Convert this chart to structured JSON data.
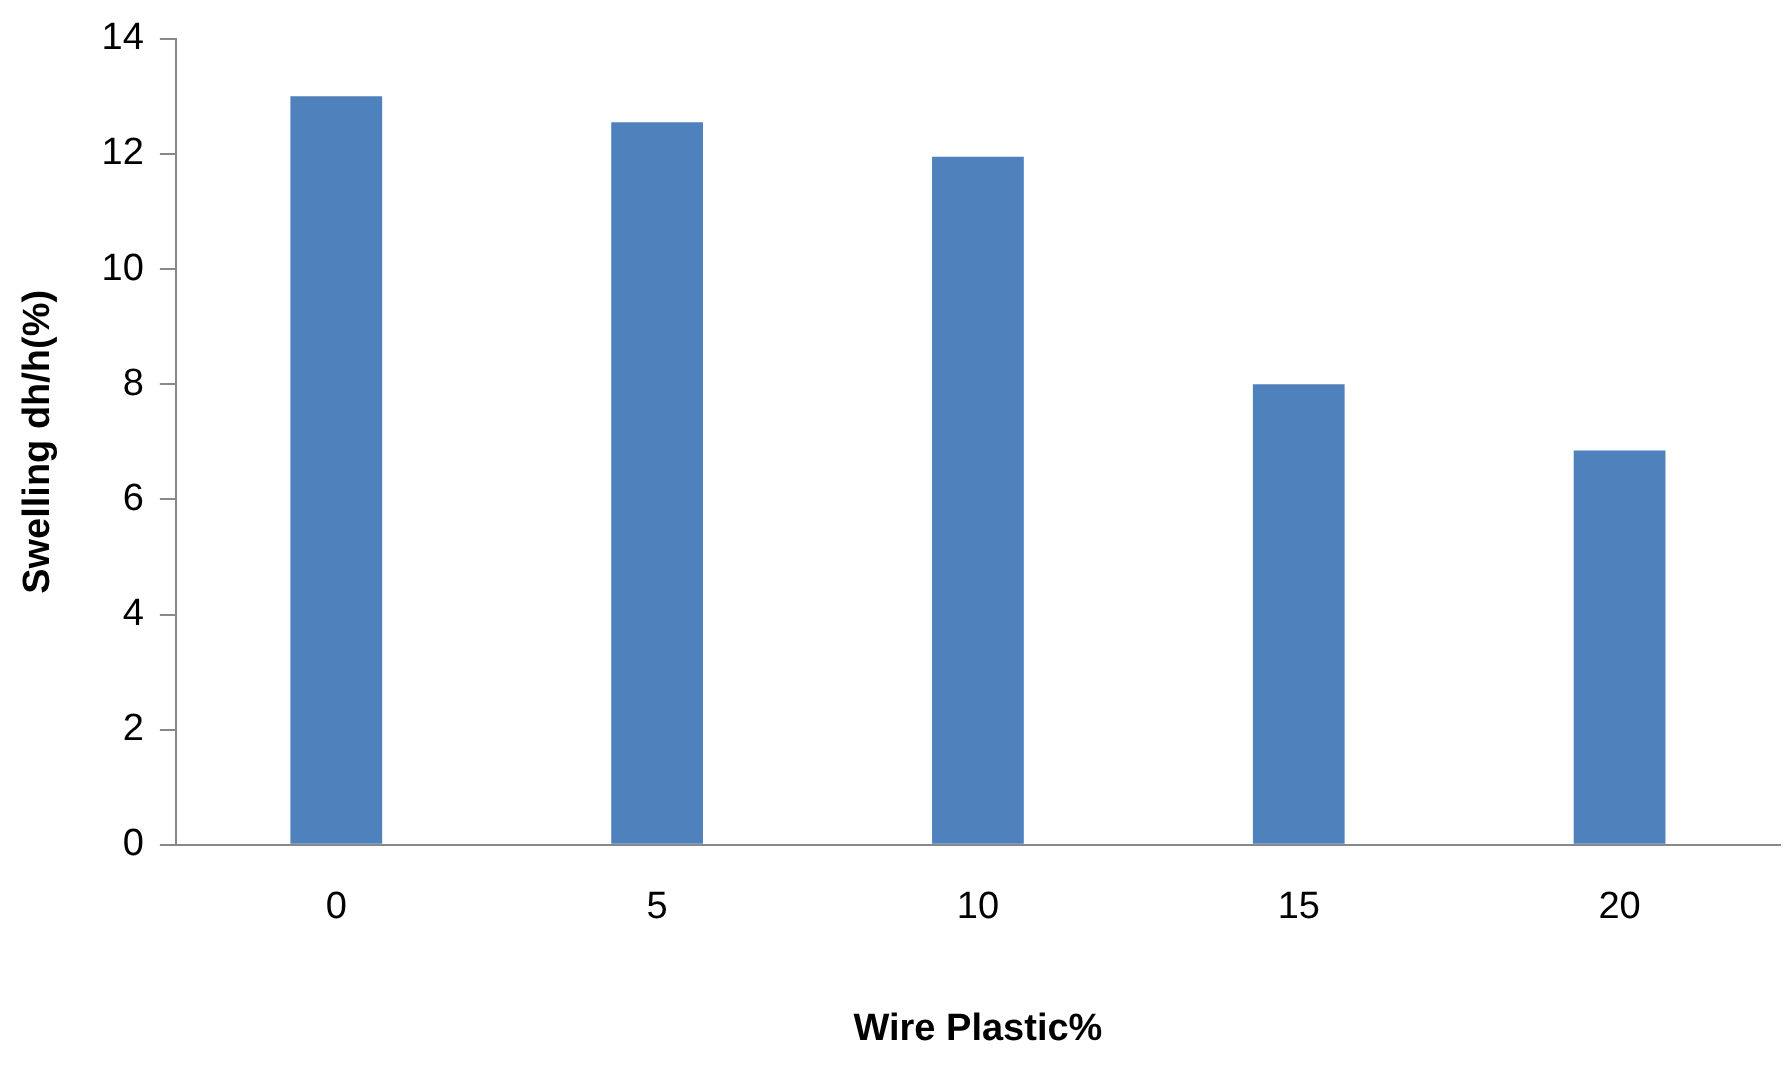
{
  "chart_data": {
    "type": "bar",
    "xlabel": "Wire Plastic%",
    "ylabel": "Swelling dh/h(%)",
    "categories": [
      "0",
      "5",
      "10",
      "15",
      "20"
    ],
    "values": [
      13.0,
      12.55,
      11.95,
      8.0,
      6.85
    ],
    "color": "#4f81bd",
    "ylim": [
      0,
      14
    ],
    "yticks": [
      0,
      2,
      4,
      6,
      8,
      10,
      12,
      14
    ],
    "grid": false,
    "legend": false
  }
}
